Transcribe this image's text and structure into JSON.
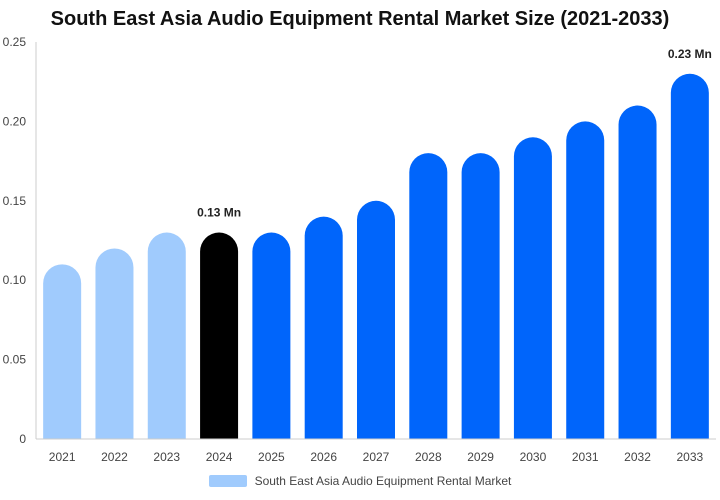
{
  "chart_data": {
    "type": "bar",
    "title": "South East Asia Audio Equipment Rental Market Size (2021-2033)",
    "xlabel": "",
    "ylabel": "",
    "ylim": [
      0,
      0.25
    ],
    "y_ticks": [
      "0",
      "0.05",
      "0.10",
      "0.15",
      "0.20",
      "0.25"
    ],
    "categories": [
      "2021",
      "2022",
      "2023",
      "2024",
      "2025",
      "2026",
      "2027",
      "2028",
      "2029",
      "2030",
      "2031",
      "2032",
      "2033"
    ],
    "series": [
      {
        "name": "South East Asia Audio Equipment Rental Market",
        "values": [
          0.11,
          0.12,
          0.13,
          0.13,
          0.13,
          0.14,
          0.15,
          0.18,
          0.18,
          0.19,
          0.2,
          0.21,
          0.23
        ]
      }
    ],
    "bar_colors": [
      "#a0cbfd",
      "#a0cbfd",
      "#a0cbfd",
      "#000000",
      "#0065fb",
      "#0065fb",
      "#0065fb",
      "#0065fb",
      "#0065fb",
      "#0065fb",
      "#0065fb",
      "#0065fb",
      "#0065fb"
    ],
    "data_labels": [
      {
        "category": "2024",
        "text": "0.13 Mn"
      },
      {
        "category": "2033",
        "text": "0.23 Mn"
      }
    ],
    "grid": false,
    "legend_position": "bottom-center",
    "legend_color": "#a0cbfd"
  }
}
